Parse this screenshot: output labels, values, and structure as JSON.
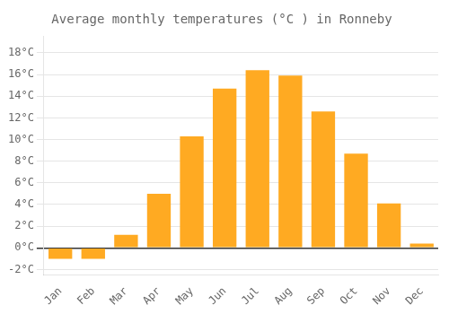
{
  "chart_data": {
    "type": "bar",
    "title": "Average monthly temperatures (°C ) in Ronneby",
    "categories": [
      "Jan",
      "Feb",
      "Mar",
      "Apr",
      "May",
      "Jun",
      "Jul",
      "Aug",
      "Sep",
      "Oct",
      "Nov",
      "Dec"
    ],
    "values": [
      -1.0,
      -1.0,
      1.2,
      5.0,
      10.3,
      14.7,
      16.4,
      15.9,
      12.6,
      8.7,
      4.1,
      0.4
    ],
    "color": "#FFAA22",
    "ylim": [
      -2.5,
      19.5
    ],
    "yticks": [
      {
        "value": -2,
        "label": "-2°C"
      },
      {
        "value": 0,
        "label": "0°C"
      },
      {
        "value": 2,
        "label": "2°C"
      },
      {
        "value": 4,
        "label": "4°C"
      },
      {
        "value": 6,
        "label": "6°C"
      },
      {
        "value": 8,
        "label": "8°C"
      },
      {
        "value": 10,
        "label": "10°C"
      },
      {
        "value": 12,
        "label": "12°C"
      },
      {
        "value": 14,
        "label": "14°C"
      },
      {
        "value": 16,
        "label": "16°C"
      },
      {
        "value": 18,
        "label": "18°C"
      }
    ],
    "grid": true
  }
}
